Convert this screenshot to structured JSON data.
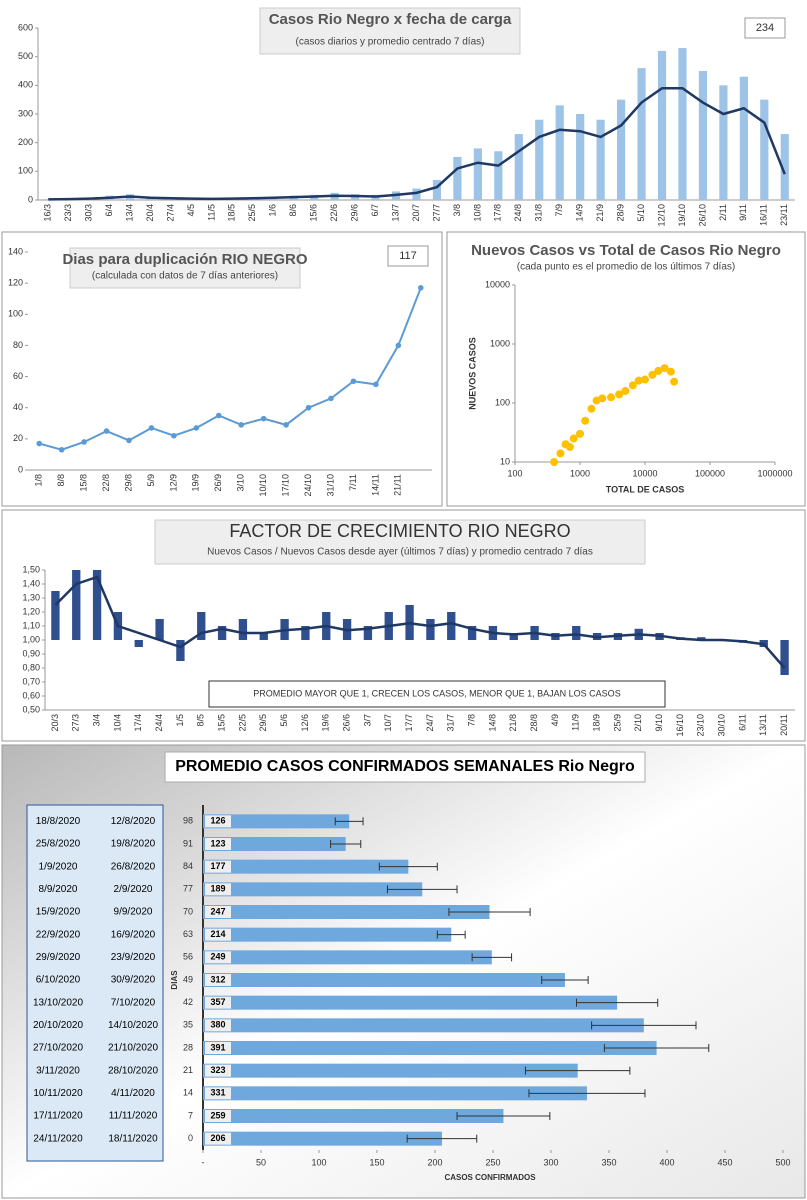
{
  "chart_data": [
    {
      "type": "bar_line",
      "title": "Casos  Rio Negro x fecha  de carga",
      "subtitle": "(casos diarios y promedio  centrado 7 días)",
      "callout": "234",
      "categories": [
        "16/3",
        "23/3",
        "30/3",
        "6/4",
        "13/4",
        "20/4",
        "27/4",
        "4/5",
        "11/5",
        "18/5",
        "25/5",
        "1/6",
        "8/6",
        "15/6",
        "22/6",
        "29/6",
        "6/7",
        "13/7",
        "20/7",
        "27/7",
        "3/8",
        "10/8",
        "17/8",
        "24/8",
        "31/8",
        "7/9",
        "14/9",
        "21/9",
        "28/9",
        "5/10",
        "12/10",
        "19/10",
        "26/10",
        "2/11",
        "9/11",
        "16/11",
        "23/11"
      ],
      "series": [
        {
          "type": "bar",
          "color": "#9dc3e6",
          "values": [
            3,
            5,
            8,
            15,
            20,
            12,
            8,
            6,
            6,
            8,
            10,
            12,
            15,
            18,
            25,
            20,
            18,
            30,
            40,
            70,
            150,
            180,
            170,
            230,
            280,
            330,
            300,
            280,
            350,
            460,
            520,
            530,
            450,
            400,
            430,
            350,
            230
          ]
        },
        {
          "type": "line",
          "color": "#1f3864",
          "values": [
            2,
            3,
            5,
            8,
            12,
            8,
            6,
            5,
            4,
            5,
            6,
            8,
            10,
            12,
            15,
            14,
            12,
            18,
            25,
            45,
            110,
            130,
            120,
            170,
            220,
            245,
            240,
            220,
            260,
            340,
            390,
            390,
            340,
            300,
            320,
            270,
            90
          ]
        }
      ],
      "ylim": [
        0,
        600
      ],
      "yticks": [
        0,
        100,
        200,
        300,
        400,
        500,
        600
      ],
      "grid": false
    },
    {
      "type": "line",
      "title": "Dias para duplicación RIO NEGRO",
      "subtitle": "(calculada con datos de 7 días anteriores)",
      "callout": "117",
      "categories": [
        "1/8",
        "8/8",
        "15/8",
        "22/8",
        "29/8",
        "5/9",
        "12/9",
        "19/9",
        "26/9",
        "3/10",
        "10/10",
        "17/10",
        "24/10",
        "31/10",
        "7/11",
        "14/11",
        "21/11",
        null
      ],
      "series": [
        {
          "color": "#5b9bd5",
          "values": [
            17,
            13,
            18,
            25,
            19,
            27,
            22,
            27,
            35,
            29,
            33,
            29,
            40,
            46,
            57,
            55,
            80,
            117
          ]
        }
      ],
      "ylim": [
        0,
        140
      ],
      "yticks": [
        0,
        20,
        40,
        60,
        80,
        100,
        120,
        140
      ],
      "grid": false
    },
    {
      "type": "scatter",
      "title": "Nuevos Casos vs Total de Casos Rio Negro",
      "subtitle": "(cada punto es el promedio de los últimos 7 días)",
      "x_label": "TOTAL DE CASOS",
      "y_label": "NUEVOS CASOS",
      "log_x": true,
      "log_y": true,
      "color": "#ffc000",
      "x": [
        400,
        500,
        600,
        700,
        800,
        1000,
        1200,
        1500,
        1800,
        2200,
        3000,
        4000,
        5000,
        6500,
        8000,
        10000,
        13000,
        16000,
        20000,
        25000,
        28000
      ],
      "y": [
        10,
        14,
        20,
        18,
        25,
        30,
        50,
        80,
        110,
        120,
        125,
        140,
        160,
        200,
        240,
        250,
        300,
        350,
        390,
        340,
        230
      ],
      "xlim": [
        100,
        1000000
      ],
      "xticks": [
        100,
        1000,
        10000,
        100000,
        1000000
      ],
      "ylim": [
        10,
        10000
      ],
      "yticks": [
        10,
        100,
        1000,
        10000
      ]
    },
    {
      "type": "bar_line",
      "title": "FACTOR DE CRECIMIENTO RIO NEGRO",
      "subtitle": "Nuevos Casos  / Nuevos Casos desde ayer (últimos 7 días) y promedio  centrado 7 días",
      "annotation": "PROMEDIO MAYOR QUE 1, CRECEN LOS CASOS, MENOR QUE 1, BAJAN LOS CASOS",
      "baseline": 1,
      "categories": [
        "20/3",
        "27/3",
        "3/4",
        "10/4",
        "17/4",
        "24/4",
        "1/5",
        "8/5",
        "15/5",
        "22/5",
        "29/5",
        "5/6",
        "12/6",
        "19/6",
        "26/6",
        "3/7",
        "10/7",
        "17/7",
        "24/7",
        "31/7",
        "7/8",
        "14/8",
        "21/8",
        "28/8",
        "4/9",
        "11/9",
        "18/9",
        "25/9",
        "2/10",
        "9/10",
        "16/10",
        "23/10",
        "30/10",
        "6/11",
        "13/11",
        "20/11"
      ],
      "series": [
        {
          "type": "bar",
          "color": "#2f4f8f",
          "values": [
            1.35,
            1.5,
            1.5,
            1.2,
            0.95,
            1.15,
            0.85,
            1.2,
            1.1,
            1.15,
            1.05,
            1.15,
            1.1,
            1.2,
            1.15,
            1.1,
            1.2,
            1.25,
            1.15,
            1.2,
            1.1,
            1.1,
            1.05,
            1.1,
            1.05,
            1.1,
            1.05,
            1.05,
            1.08,
            1.05,
            1.02,
            1.02,
            1.0,
            0.98,
            0.95,
            0.75
          ]
        },
        {
          "type": "line",
          "color": "#1f3864",
          "values": [
            1.25,
            1.4,
            1.45,
            1.1,
            1.05,
            1.0,
            0.95,
            1.05,
            1.08,
            1.05,
            1.05,
            1.07,
            1.08,
            1.1,
            1.07,
            1.08,
            1.1,
            1.12,
            1.1,
            1.12,
            1.08,
            1.05,
            1.04,
            1.05,
            1.03,
            1.04,
            1.02,
            1.03,
            1.04,
            1.03,
            1.01,
            1.0,
            1.0,
            0.99,
            0.97,
            0.8
          ]
        }
      ],
      "ylim": [
        0.5,
        1.5
      ],
      "yticks": [
        {
          "value": 0.5,
          "label": "0,50"
        },
        {
          "value": 0.6,
          "label": "0,60"
        },
        {
          "value": 0.7,
          "label": "0,70"
        },
        {
          "value": 0.8,
          "label": "0,80"
        },
        {
          "value": 0.9,
          "label": "0,90"
        },
        {
          "value": 1.0,
          "label": "1,00"
        },
        {
          "value": 1.1,
          "label": "1,10"
        },
        {
          "value": 1.2,
          "label": "1,20"
        },
        {
          "value": 1.3,
          "label": "1,30"
        },
        {
          "value": 1.4,
          "label": "1,40"
        },
        {
          "value": 1.5,
          "label": "1,50"
        }
      ],
      "grid": false
    },
    {
      "type": "hbar",
      "title": "PROMEDIO CASOS CONFIRMADOS SEMANALES Rio Negro",
      "x_label": "CASOS CONFIRMADOS",
      "y_label": "DIAS",
      "color": "#6fa8dc",
      "date_pairs": [
        [
          "18/8/2020",
          "12/8/2020"
        ],
        [
          "25/8/2020",
          "19/8/2020"
        ],
        [
          "1/9/2020",
          "26/8/2020"
        ],
        [
          "8/9/2020",
          "2/9/2020"
        ],
        [
          "15/9/2020",
          "9/9/2020"
        ],
        [
          "22/9/2020",
          "16/9/2020"
        ],
        [
          "29/9/2020",
          "23/9/2020"
        ],
        [
          "6/10/2020",
          "30/9/2020"
        ],
        [
          "13/10/2020",
          "7/10/2020"
        ],
        [
          "20/10/2020",
          "14/10/2020"
        ],
        [
          "27/10/2020",
          "21/10/2020"
        ],
        [
          "3/11/2020",
          "28/10/2020"
        ],
        [
          "10/11/2020",
          "4/11/2020"
        ],
        [
          "17/11/2020",
          "11/11/2020"
        ],
        [
          "24/11/2020",
          "18/11/2020"
        ]
      ],
      "categories": [
        "98",
        "91",
        "84",
        "77",
        "70",
        "63",
        "56",
        "49",
        "42",
        "35",
        "28",
        "21",
        "14",
        "7",
        "0"
      ],
      "values": [
        126,
        123,
        177,
        189,
        247,
        214,
        249,
        312,
        357,
        380,
        391,
        323,
        331,
        259,
        206
      ],
      "errors": [
        12,
        13,
        25,
        30,
        35,
        12,
        17,
        20,
        35,
        45,
        45,
        45,
        50,
        40,
        30
      ],
      "xlim": [
        0,
        500
      ],
      "xticks": [
        {
          "value": 0,
          "label": "-"
        },
        50,
        100,
        150,
        200,
        250,
        300,
        350,
        400,
        450,
        500
      ]
    }
  ]
}
